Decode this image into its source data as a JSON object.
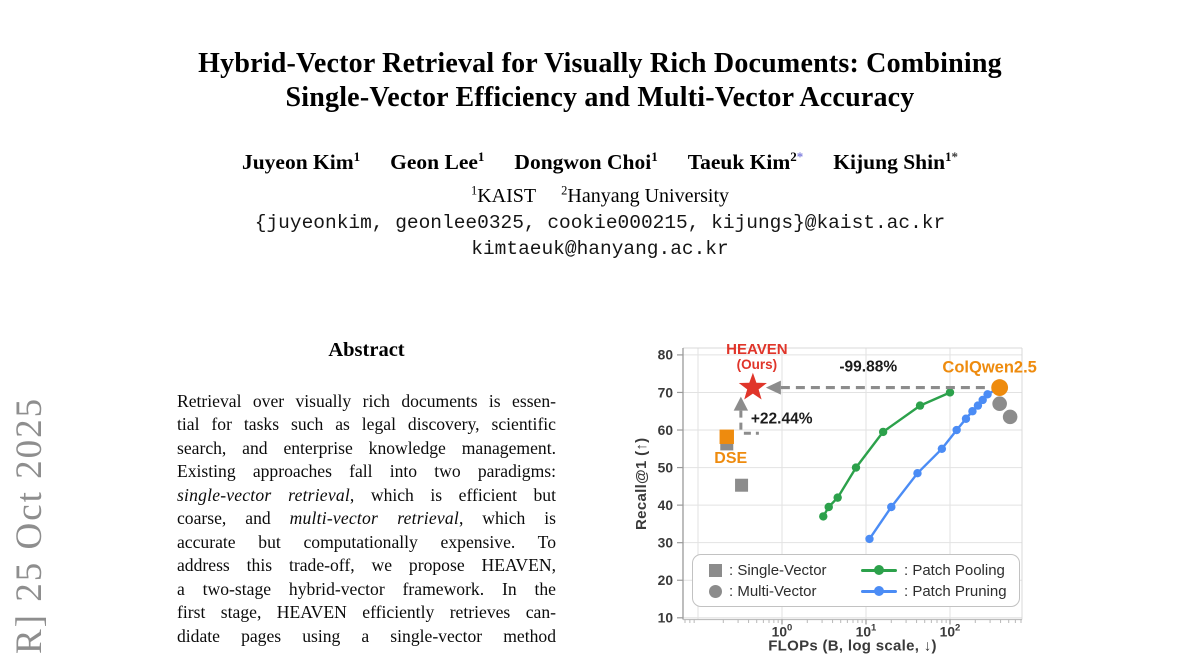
{
  "watermark": {
    "text": "R] 25 Oct 2025"
  },
  "header": {
    "title_line1": "Hybrid-Vector Retrieval for Visually Rich Documents: Combining",
    "title_line2": "Single-Vector Efficiency and Multi-Vector Accuracy",
    "authors": [
      {
        "name": "Juyeon Kim",
        "sup": "1",
        "star": ""
      },
      {
        "name": "Geon Lee",
        "sup": "1",
        "star": ""
      },
      {
        "name": "Dongwon Choi",
        "sup": "1",
        "star": ""
      },
      {
        "name": "Taeuk Kim",
        "sup": "2",
        "star": "blue"
      },
      {
        "name": "Kijung Shin",
        "sup": "1",
        "star": "dark"
      }
    ],
    "affiliations": [
      {
        "sup": "1",
        "name": "KAIST"
      },
      {
        "sup": "2",
        "name": "Hanyang University"
      }
    ],
    "emails": [
      "{juyeonkim, geonlee0325, cookie000215, kijungs}@kaist.ac.kr",
      "kimtaeuk@hanyang.ac.kr"
    ]
  },
  "abstract": {
    "heading": "Abstract",
    "lines": [
      "Retrieval over visually rich documents is essen-",
      "tial for tasks such as legal discovery, scientific",
      "search, and enterprise knowledge management.",
      "Existing approaches fall into two paradigms:",
      "single-vector retrieval, which is efficient but",
      "coarse, and multi-vector retrieval, which is",
      "accurate but computationally expensive. To",
      "address this trade-off, we propose HEAVEN,",
      "a two-stage hybrid-vector framework. In the",
      "first stage, HEAVEN efficiently retrieves can-",
      "didate pages using a single-vector method"
    ],
    "italic_phrases": [
      "single-vector retrieval",
      "multi-vector retrieval"
    ]
  },
  "chart_data": {
    "type": "scatter",
    "xlabel": "FLOPs (B, log scale, ↓)",
    "ylabel": "Recall@1 (↑)",
    "x_scale": "log",
    "x_ticks": [
      "10^0",
      "10^1",
      "10^2"
    ],
    "y_ticks": [
      10,
      20,
      30,
      40,
      50,
      60,
      70,
      80
    ],
    "ylim": [
      10,
      82
    ],
    "grid": true,
    "legend_position": "lower left",
    "points": [
      {
        "label": "HEAVEN (Ours)",
        "marker": "star",
        "color_key": "red",
        "x": 0.45,
        "y": 71.3
      },
      {
        "label": "DSE",
        "marker": "square",
        "color_key": "orange",
        "x": 0.22,
        "y": 58.2
      },
      {
        "label": "ColQwen2.5",
        "marker": "circle",
        "color_key": "orange",
        "x": 390,
        "y": 71.3
      },
      {
        "label": "single-vector baseline",
        "marker": "square",
        "color_key": "gray",
        "x": 0.22,
        "y": 56.3
      },
      {
        "label": "single-vector baseline",
        "marker": "square",
        "color_key": "gray",
        "x": 0.33,
        "y": 45.3
      },
      {
        "label": "multi-vector baseline",
        "marker": "circle",
        "color_key": "gray",
        "x": 390,
        "y": 67
      },
      {
        "label": "multi-vector baseline",
        "marker": "circle",
        "color_key": "gray",
        "x": 520,
        "y": 63.5
      }
    ],
    "series": [
      {
        "name": "Patch Pooling",
        "color_key": "green",
        "points": [
          [
            3.1,
            37
          ],
          [
            3.6,
            39.5
          ],
          [
            4.6,
            42
          ],
          [
            7.6,
            50
          ],
          [
            16,
            59.5
          ],
          [
            44,
            66.5
          ],
          [
            100,
            70
          ]
        ]
      },
      {
        "name": "Patch Pruning",
        "color_key": "blue",
        "points": [
          [
            11,
            31
          ],
          [
            20,
            39.5
          ],
          [
            41,
            48.5
          ],
          [
            80,
            55
          ],
          [
            120,
            60
          ],
          [
            155,
            63
          ],
          [
            185,
            65
          ],
          [
            215,
            66.5
          ],
          [
            245,
            68
          ],
          [
            280,
            69.5
          ],
          [
            390,
            71.3
          ]
        ]
      }
    ],
    "annotations": {
      "flops_reduction": "-99.88%",
      "recall_improvement": "+22.44%",
      "heaven_label_line1": "HEAVEN",
      "heaven_label_line2": "(Ours)",
      "colqwen_label": "ColQwen2.5",
      "dse_label": "DSE"
    },
    "legend": [
      {
        "label": ": Single-Vector",
        "marker": "square",
        "color_key": "gray"
      },
      {
        "label": ": Patch Pooling",
        "marker": "line",
        "color_key": "green"
      },
      {
        "label": ": Multi-Vector",
        "marker": "circle",
        "color_key": "gray"
      },
      {
        "label": ": Patch Pruning",
        "marker": "line",
        "color_key": "blue"
      }
    ],
    "colors": {
      "red": "#e0352a",
      "orange": "#ee8b0e",
      "green": "#2ca14b",
      "blue": "#4b8cf5",
      "gray": "#8c8c8c"
    }
  }
}
